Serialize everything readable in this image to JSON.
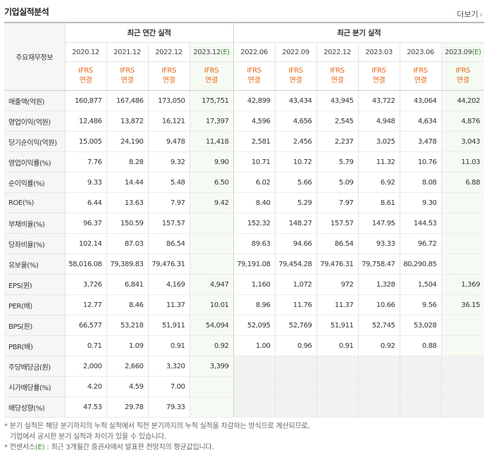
{
  "section_title": "기업실적분석",
  "more_label": "더보기",
  "rowhead_label": "주요재무정보",
  "group_annual": "최근 연간 실적",
  "group_quarter": "최근 분기 실적",
  "annual_periods": [
    "2020.12",
    "2021.12",
    "2022.12",
    "2023.12"
  ],
  "quarter_periods": [
    "2022.06",
    "2022.09",
    "2022.12",
    "2023.03",
    "2023.06",
    "2023.09"
  ],
  "estimate_mark": "(E)",
  "ifrs_line1": "IFRS",
  "ifrs_line2": "연결",
  "rows": [
    {
      "label": "매출액(억원)",
      "a": [
        "160,877",
        "167,486",
        "173,050",
        "175,751"
      ],
      "q": [
        "42,899",
        "43,434",
        "43,945",
        "43,722",
        "43,064",
        "44,202"
      ]
    },
    {
      "label": "영업이익(억원)",
      "a": [
        "12,486",
        "13,872",
        "16,121",
        "17,397"
      ],
      "q": [
        "4,596",
        "4,656",
        "2,545",
        "4,948",
        "4,634",
        "4,876"
      ]
    },
    {
      "label": "당기순이익(억원)",
      "a": [
        "15,005",
        "24,190",
        "9,478",
        "11,418"
      ],
      "q": [
        "2,581",
        "2,456",
        "2,237",
        "3,025",
        "3,478",
        "3,043"
      ]
    },
    {
      "label": "영업이익률(%)",
      "a": [
        "7.76",
        "8.28",
        "9.32",
        "9.90"
      ],
      "q": [
        "10.71",
        "10.72",
        "5.79",
        "11.32",
        "10.76",
        "11.03"
      ]
    },
    {
      "label": "순이익률(%)",
      "a": [
        "9.33",
        "14.44",
        "5.48",
        "6.50"
      ],
      "q": [
        "6.02",
        "5.66",
        "5.09",
        "6.92",
        "8.08",
        "6.88"
      ]
    },
    {
      "label": "ROE(%)",
      "a": [
        "6.44",
        "13.63",
        "7.97",
        "9.42"
      ],
      "q": [
        "8.40",
        "5.29",
        "7.97",
        "8.61",
        "9.30",
        ""
      ]
    },
    {
      "label": "부채비율(%)",
      "a": [
        "96.37",
        "150.59",
        "157.57",
        ""
      ],
      "q": [
        "152.32",
        "148.27",
        "157.57",
        "147.95",
        "144.53",
        ""
      ]
    },
    {
      "label": "당좌비율(%)",
      "a": [
        "102.14",
        "87.03",
        "86.54",
        ""
      ],
      "q": [
        "89.63",
        "94.66",
        "86.54",
        "93.33",
        "96.72",
        ""
      ]
    },
    {
      "label": "유보율(%)",
      "a": [
        "58,016.08",
        "79,389.83",
        "79,476.31",
        ""
      ],
      "q": [
        "79,191.08",
        "79,454.28",
        "79,476.31",
        "79,758.47",
        "80,290.85",
        ""
      ]
    },
    {
      "label": "EPS(원)",
      "a": [
        "3,726",
        "6,841",
        "4,169",
        "4,947"
      ],
      "q": [
        "1,160",
        "1,072",
        "972",
        "1,328",
        "1,504",
        "1,369"
      ]
    },
    {
      "label": "PER(배)",
      "a": [
        "12.77",
        "8.46",
        "11.37",
        "10.01"
      ],
      "q": [
        "8.96",
        "11.76",
        "11.37",
        "10.66",
        "9.56",
        "36.15"
      ]
    },
    {
      "label": "BPS(원)",
      "a": [
        "66,577",
        "53,218",
        "51,911",
        "54,094"
      ],
      "q": [
        "52,095",
        "52,769",
        "51,911",
        "52,745",
        "53,028",
        ""
      ]
    },
    {
      "label": "PBR(배)",
      "a": [
        "0.71",
        "1.09",
        "0.91",
        "0.92"
      ],
      "q": [
        "1.00",
        "0.96",
        "0.91",
        "0.92",
        "0.88",
        ""
      ]
    },
    {
      "label": "주당배당금(원)",
      "a": [
        "2,000",
        "2,660",
        "3,320",
        "3,399"
      ],
      "q": [
        "",
        "",
        "",
        "",
        "",
        ""
      ]
    },
    {
      "label": "시가배당률(%)",
      "a": [
        "4.20",
        "4.59",
        "7.00",
        ""
      ],
      "q": [
        "",
        "",
        "",
        "",
        "",
        ""
      ]
    },
    {
      "label": "배당성향(%)",
      "a": [
        "47.53",
        "29.78",
        "79.33",
        ""
      ],
      "q": [
        "",
        "",
        "",
        "",
        "",
        ""
      ]
    }
  ],
  "notes": [
    "* 분기 실적은 해당 분기까지의 누적 실적에서 직전 분기까지의 누적 실적을 차감하는 방식으로 계산되므로,",
    "기업에서 공시한 분기 실적과 차이가 있을 수 있습니다.",
    "* 컨센서스(E) : 최근 3개월간 증권사에서 발표한 전망치의 평균값입니다."
  ]
}
